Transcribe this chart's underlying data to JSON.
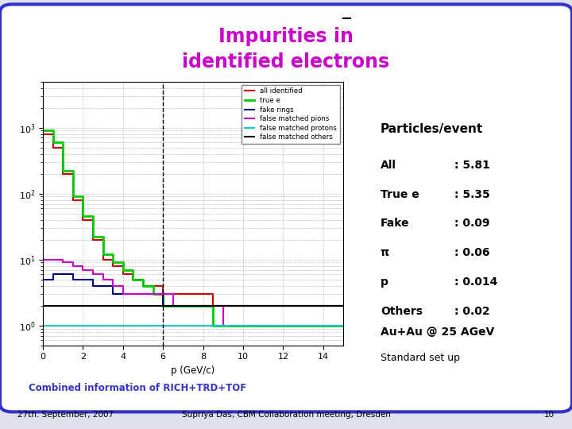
{
  "title_line1": "Impurities in",
  "title_line2": "identified electrons",
  "title_color": "#cc00cc",
  "border_color": "#3333cc",
  "particles_event_label": "Particles/event",
  "stats": [
    {
      "label": "All",
      "value": ": 5.81"
    },
    {
      "label": "True e",
      "value": ": 5.35"
    },
    {
      "label": "Fake",
      "value": ": 0.09"
    },
    {
      "label": "π",
      "value": ": 0.06"
    },
    {
      "label": "p",
      "value": ": 0.014"
    },
    {
      "label": "Others",
      "value": ": 0.02"
    }
  ],
  "footer_line1": "Au+Au @ 25 AGeV",
  "footer_line2": "Standard set up",
  "bottom_label": "Combined information of RICH+TRD+TOF",
  "date_label": "27th. September, 2007",
  "author_label": "Supriya Das, CBM Collaboration meeting, Dresden",
  "page_num": "10",
  "legend_entries": [
    {
      "label": "all identified",
      "color": "#cc0000",
      "lw": 1.5
    },
    {
      "label": "true e",
      "color": "#00cc00",
      "lw": 2.0
    },
    {
      "label": "fake rings",
      "color": "#00008b",
      "lw": 1.5
    },
    {
      "label": "false matched pions",
      "color": "#cc00cc",
      "lw": 1.5
    },
    {
      "label": "false matched protons",
      "color": "#00cccc",
      "lw": 1.5
    },
    {
      "label": "false matched others",
      "color": "#000000",
      "lw": 1.5
    }
  ],
  "xlabel": "p (GeV/c)",
  "xlim": [
    0,
    15
  ],
  "ylim_log": [
    0.5,
    5000
  ],
  "grid_color": "#bbbbbb",
  "dashed_x": 6.0,
  "all_id": [
    800,
    500,
    200,
    80,
    40,
    20,
    10,
    8,
    6,
    5,
    4,
    4,
    3,
    3,
    3,
    3,
    3,
    2,
    2,
    2,
    2,
    2,
    2,
    2,
    2,
    2,
    2,
    2,
    2,
    2
  ],
  "true_e": [
    900,
    600,
    220,
    90,
    45,
    22,
    12,
    9,
    7,
    5,
    4,
    3,
    2,
    2,
    2,
    2,
    2,
    1,
    1,
    1,
    1,
    1,
    1,
    1,
    1,
    1,
    1,
    1,
    1,
    1
  ],
  "fake_rings": [
    5,
    6,
    6,
    5,
    5,
    4,
    4,
    3,
    3,
    3,
    3,
    3,
    2,
    2,
    2,
    2,
    2,
    2,
    2,
    2,
    2,
    2,
    2,
    2,
    2,
    2,
    2,
    2,
    2,
    2
  ],
  "pions": [
    10,
    10,
    9,
    8,
    7,
    6,
    5,
    4,
    3,
    3,
    3,
    3,
    3,
    2,
    2,
    2,
    2,
    2,
    1,
    1,
    1,
    1,
    1,
    1,
    1,
    1,
    1,
    1,
    1,
    1
  ],
  "protons": [
    1,
    1,
    1,
    1,
    1,
    1,
    1,
    1,
    1,
    1,
    1,
    1,
    1,
    1,
    1,
    1,
    1,
    1,
    1,
    1,
    1,
    1,
    1,
    1,
    1,
    1,
    1,
    1,
    1,
    1
  ],
  "others": [
    2,
    2,
    2,
    2,
    2,
    2,
    2,
    2,
    2,
    2,
    2,
    2,
    2,
    2,
    2,
    2,
    2,
    2,
    2,
    2,
    2,
    2,
    2,
    2,
    2,
    2,
    2,
    2,
    2,
    2
  ]
}
